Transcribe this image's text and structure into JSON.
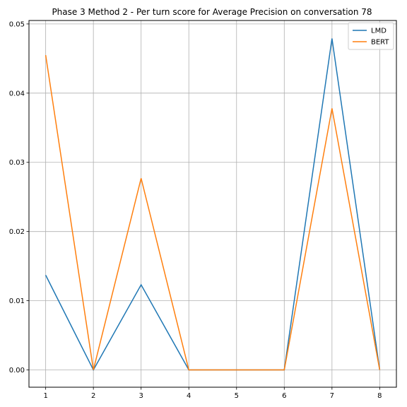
{
  "chart_data": {
    "type": "line",
    "title": "Phase 3 Method 2 - Per turn score for Average Precision on conversation 78",
    "xlabel": "",
    "ylabel": "",
    "x": [
      1,
      2,
      3,
      4,
      5,
      6,
      7,
      8
    ],
    "xticks": [
      "1",
      "2",
      "3",
      "4",
      "5",
      "6",
      "7",
      "8"
    ],
    "yticks": [
      "0.00",
      "0.01",
      "0.02",
      "0.03",
      "0.04",
      "0.05"
    ],
    "xlim": [
      0.65,
      8.35
    ],
    "ylim": [
      -0.0025,
      0.0505
    ],
    "grid": true,
    "legend_position": "top-right",
    "series": [
      {
        "name": "LMD",
        "color": "#1f77b4",
        "values": [
          0.0137,
          0.0,
          0.0123,
          0.0,
          0.0,
          0.0,
          0.0479,
          0.0
        ]
      },
      {
        "name": "BERT",
        "color": "#ff7f0e",
        "values": [
          0.0455,
          0.0,
          0.0277,
          0.0,
          0.0,
          0.0,
          0.0378,
          0.0
        ]
      }
    ]
  }
}
